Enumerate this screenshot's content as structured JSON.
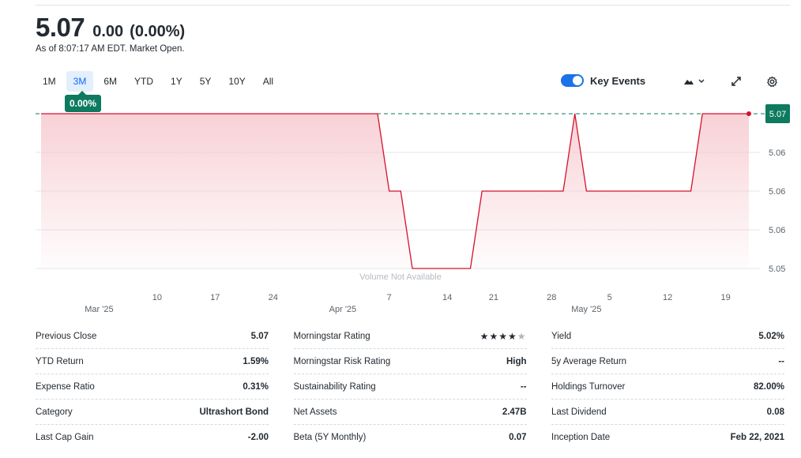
{
  "quote": {
    "price": "5.07",
    "change": "0.00",
    "change_pct": "(0.00%)",
    "as_of": "As of 8:07:17 AM EDT. Market Open."
  },
  "ranges": {
    "items": [
      "1M",
      "3M",
      "6M",
      "YTD",
      "1Y",
      "5Y",
      "10Y",
      "All"
    ],
    "active": "3M",
    "active_tooltip": "0.00%"
  },
  "toolbar": {
    "key_events_label": "Key Events",
    "key_events_on": true,
    "chart_type_icon": "mountain-chart-icon",
    "expand_icon": "expand-icon",
    "settings_icon": "gear-icon"
  },
  "chart_data": {
    "type": "area",
    "title": "",
    "xlabel": "",
    "ylabel": "",
    "volume_note": "Volume Not Available",
    "y_ticks": [
      "5.07",
      "5.06",
      "5.06",
      "5.06",
      "5.05"
    ],
    "y_tick_values": [
      5.07,
      5.065,
      5.06,
      5.055,
      5.05
    ],
    "ylim": [
      5.05,
      5.07
    ],
    "current_price_label": "5.07",
    "reference_line": 5.07,
    "x_ticks": [
      {
        "label": "10",
        "day": 10
      },
      {
        "label": "17",
        "day": 15
      },
      {
        "label": "24",
        "day": 20
      },
      {
        "label": "7",
        "day": 30
      },
      {
        "label": "14",
        "day": 35
      },
      {
        "label": "21",
        "day": 39
      },
      {
        "label": "28",
        "day": 44
      },
      {
        "label": "5",
        "day": 49
      },
      {
        "label": "12",
        "day": 54
      },
      {
        "label": "19",
        "day": 59
      }
    ],
    "month_ticks": [
      {
        "label": "Mar '25",
        "day": 5
      },
      {
        "label": "Apr '25",
        "day": 26
      },
      {
        "label": "May '25",
        "day": 47
      }
    ],
    "series": [
      {
        "x": [
          0,
          29,
          30,
          31,
          32,
          33,
          37,
          38,
          45,
          46,
          47,
          56,
          57,
          61
        ],
        "y": [
          5.07,
          5.07,
          5.06,
          5.06,
          5.05,
          5.05,
          5.05,
          5.06,
          5.06,
          5.07,
          5.06,
          5.06,
          5.07,
          5.07
        ]
      }
    ],
    "x_range": [
      0,
      61
    ],
    "line_color": "#d3122a",
    "fill_color": "#f6c9cf",
    "ref_line_color": "#0e7a5f",
    "grid": true
  },
  "stats": [
    [
      {
        "label": "Previous Close",
        "value": "5.07"
      },
      {
        "label": "YTD Return",
        "value": "1.59%"
      },
      {
        "label": "Expense Ratio",
        "value": "0.31%"
      },
      {
        "label": "Category",
        "value": "Ultrashort Bond"
      },
      {
        "label": "Last Cap Gain",
        "value": "-2.00"
      }
    ],
    [
      {
        "label": "Morningstar Rating",
        "value": "",
        "stars": 4,
        "stars_max": 5
      },
      {
        "label": "Morningstar Risk Rating",
        "value": "High"
      },
      {
        "label": "Sustainability Rating",
        "value": "--"
      },
      {
        "label": "Net Assets",
        "value": "2.47B"
      },
      {
        "label": "Beta (5Y Monthly)",
        "value": "0.07"
      }
    ],
    [
      {
        "label": "Yield",
        "value": "5.02%"
      },
      {
        "label": "5y Average Return",
        "value": "--"
      },
      {
        "label": "Holdings Turnover",
        "value": "82.00%"
      },
      {
        "label": "Last Dividend",
        "value": "0.08"
      },
      {
        "label": "Inception Date",
        "value": "Feb 22, 2021"
      }
    ]
  ]
}
